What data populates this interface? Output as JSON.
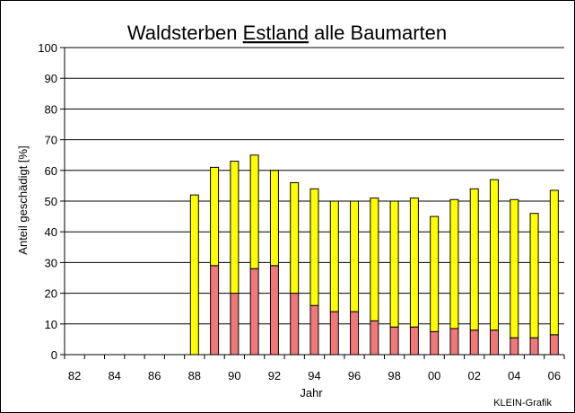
{
  "chart_data": {
    "type": "bar",
    "stacked": true,
    "title_parts": [
      "Waldsterben ",
      "Estland",
      " alle Baumarten"
    ],
    "title_underlined_part": "Estland",
    "xlabel": "Jahr",
    "ylabel": "Anteil geschädigt [%]",
    "ylim": [
      0,
      100
    ],
    "yticks": [
      "0",
      "10",
      "20",
      "30",
      "40",
      "50",
      "60",
      "70",
      "80",
      "90",
      "100"
    ],
    "xtick_labels": [
      "82",
      "84",
      "86",
      "88",
      "90",
      "92",
      "94",
      "96",
      "98",
      "00",
      "02",
      "04",
      "06"
    ],
    "grid": "horizontal",
    "credit": "KLEIN-Grafik",
    "categories": [
      "82",
      "83",
      "84",
      "85",
      "86",
      "87",
      "88",
      "89",
      "90",
      "91",
      "92",
      "93",
      "94",
      "95",
      "96",
      "97",
      "98",
      "99",
      "00",
      "01",
      "02",
      "03",
      "04",
      "05",
      "06"
    ],
    "series": [
      {
        "color": "#f07878",
        "values": [
          null,
          null,
          null,
          null,
          null,
          null,
          0,
          29,
          20,
          28,
          29,
          20,
          16,
          14,
          14,
          11,
          9,
          9,
          7.5,
          8.5,
          8,
          8,
          5.5,
          5.5,
          6.5
        ]
      },
      {
        "color": "#ffff00",
        "values": [
          null,
          null,
          null,
          null,
          null,
          null,
          52,
          32,
          43,
          37,
          31,
          36,
          38,
          36,
          36,
          40,
          41,
          42,
          37.5,
          42,
          46,
          49,
          45,
          40.5,
          47
        ]
      }
    ]
  }
}
